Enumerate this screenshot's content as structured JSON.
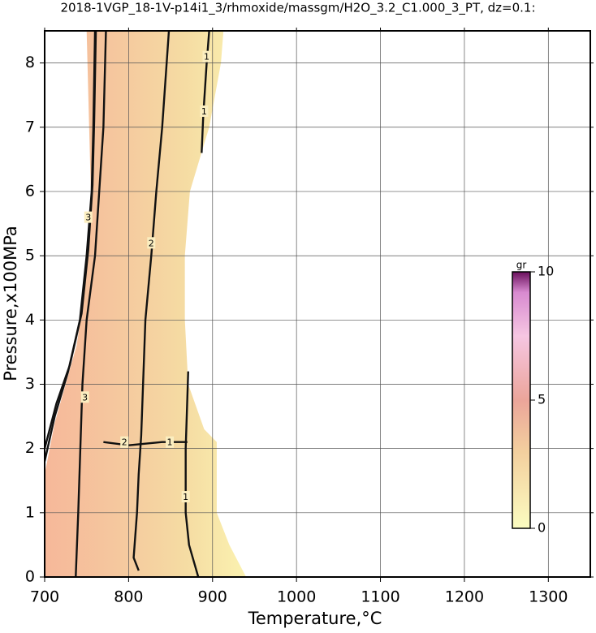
{
  "chart_data": {
    "type": "contour",
    "title": "2018-1VGP_18-1V-p14i1_3/rhmoxide/massgm/H2O_3.2_C1.000_3_PT, dz=0.1:",
    "xlabel": "Temperature,°C",
    "ylabel": "Pressure,x100MPa",
    "xlim": [
      700,
      1350
    ],
    "ylim": [
      0,
      8.5
    ],
    "xticks": [
      700,
      800,
      900,
      1000,
      1100,
      1200,
      1300
    ],
    "yticks": [
      0,
      1,
      2,
      3,
      4,
      5,
      6,
      7,
      8
    ],
    "grid": true,
    "region": {
      "x": [
        720,
        700,
        700,
        712,
        725,
        738,
        745,
        750,
        755,
        752,
        750,
        913,
        910,
        896,
        873,
        867,
        867,
        871,
        890,
        905,
        905,
        920,
        940
      ],
      "y": [
        0,
        0,
        1.6,
        2.4,
        3,
        3.6,
        4.2,
        5,
        6,
        7.5,
        8.5,
        8.5,
        8,
        7,
        6,
        5,
        4,
        3,
        2.3,
        2.1,
        1,
        0.5,
        0
      ]
    },
    "contours": [
      {
        "level": 1,
        "x": [
          883,
          872,
          868,
          868,
          870,
          871
        ],
        "y": [
          0,
          0.5,
          1,
          2,
          2.8,
          3.2
        ]
      },
      {
        "level": 1,
        "x": [
          887,
          889,
          893,
          896
        ],
        "y": [
          6.6,
          7.2,
          8,
          8.5
        ]
      },
      {
        "level": 2,
        "x": [
          812,
          806,
          810,
          812,
          815,
          820,
          827,
          833,
          840,
          848
        ],
        "y": [
          0.1,
          0.3,
          1,
          1.6,
          2.2,
          4,
          5,
          6,
          7,
          8.5
        ]
      },
      {
        "level": 3,
        "x": [
          737,
          740,
          745,
          750,
          760,
          765,
          770,
          773
        ],
        "y": [
          0,
          1,
          3,
          4,
          5,
          6,
          7,
          8.5
        ]
      },
      {
        "level": 1,
        "x": [
          700,
          712,
          728,
          742,
          750,
          756,
          758,
          760
        ],
        "y": [
          1.8,
          2.5,
          3.2,
          4,
          5,
          6,
          7,
          8.5
        ]
      },
      {
        "level": 2,
        "x": [
          700,
          714,
          730,
          744,
          752,
          757,
          759,
          761
        ],
        "y": [
          2.0,
          2.7,
          3.3,
          4.1,
          5.1,
          6.1,
          7.1,
          8.5
        ]
      },
      {
        "level": 1,
        "x": [
          770,
          800,
          840,
          870
        ],
        "y": [
          2.1,
          2.05,
          2.1,
          2.1
        ]
      }
    ],
    "contour_labels": [
      {
        "text": "1",
        "x": 890,
        "y": 7.25
      },
      {
        "text": "1",
        "x": 893,
        "y": 8.1
      },
      {
        "text": "1",
        "x": 868,
        "y": 1.25
      },
      {
        "text": "1",
        "x": 849,
        "y": 2.1
      },
      {
        "text": "2",
        "x": 827,
        "y": 5.2
      },
      {
        "text": "2",
        "x": 795,
        "y": 2.1
      },
      {
        "text": "3",
        "x": 752,
        "y": 5.6
      },
      {
        "text": "3",
        "x": 748,
        "y": 2.8
      }
    ],
    "colorbar": {
      "label": "gr",
      "lim": [
        0,
        10
      ],
      "ticks": [
        0,
        5,
        10
      ]
    }
  }
}
